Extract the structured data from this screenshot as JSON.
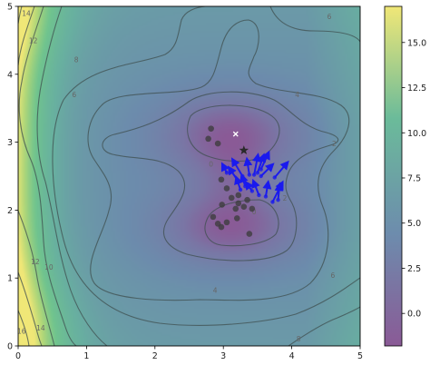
{
  "chart_data": {
    "type": "contour",
    "x_ticks": [
      "0",
      "1",
      "2",
      "3",
      "4",
      "5"
    ],
    "y_ticks": [
      "0",
      "1",
      "2",
      "3",
      "4",
      "5"
    ],
    "xlim": [
      0,
      5
    ],
    "ylim": [
      0,
      5
    ],
    "colorbar": {
      "range": [
        -1.8,
        17.0
      ],
      "ticks": [
        "0.0",
        "2.5",
        "5.0",
        "7.5",
        "10.0",
        "12.5",
        "15.0"
      ],
      "tick_values": [
        0,
        2.5,
        5,
        7.5,
        10,
        12.5,
        15
      ],
      "colormap": [
        "#440154",
        "#31688e",
        "#35b779",
        "#fde725"
      ]
    },
    "contour_labels": [
      {
        "text": "14",
        "x": 0.12,
        "y": 4.9
      },
      {
        "text": "12",
        "x": 0.22,
        "y": 4.5
      },
      {
        "text": "8",
        "x": 0.85,
        "y": 4.22
      },
      {
        "text": "6",
        "x": 0.82,
        "y": 3.7
      },
      {
        "text": "6",
        "x": 4.55,
        "y": 4.85
      },
      {
        "text": "4",
        "x": 4.08,
        "y": 3.7
      },
      {
        "text": "2",
        "x": 4.62,
        "y": 2.98
      },
      {
        "text": "0",
        "x": 2.82,
        "y": 2.68
      },
      {
        "text": "0",
        "x": 3.45,
        "y": 1.98
      },
      {
        "text": "2",
        "x": 3.9,
        "y": 2.18
      },
      {
        "text": "4",
        "x": 2.88,
        "y": 0.82
      },
      {
        "text": "6",
        "x": 4.6,
        "y": 1.04
      },
      {
        "text": "8",
        "x": 4.1,
        "y": 0.11
      },
      {
        "text": "12",
        "x": 0.25,
        "y": 1.24
      },
      {
        "text": "10",
        "x": 0.45,
        "y": 1.16
      },
      {
        "text": "14",
        "x": 0.33,
        "y": 0.27
      },
      {
        "text": "16",
        "x": 0.05,
        "y": 0.22
      }
    ],
    "gray_points": [
      [
        2.82,
        3.2
      ],
      [
        2.78,
        3.05
      ],
      [
        2.92,
        2.98
      ],
      [
        2.97,
        2.45
      ],
      [
        3.05,
        2.32
      ],
      [
        3.12,
        2.18
      ],
      [
        3.22,
        2.22
      ],
      [
        3.35,
        2.15
      ],
      [
        3.18,
        2.02
      ],
      [
        2.98,
        2.08
      ],
      [
        3.3,
        2.05
      ],
      [
        3.42,
        2.02
      ],
      [
        3.2,
        1.88
      ],
      [
        3.05,
        1.82
      ],
      [
        2.92,
        1.8
      ],
      [
        2.85,
        1.9
      ],
      [
        2.97,
        1.75
      ],
      [
        3.38,
        1.65
      ],
      [
        3.22,
        2.1
      ]
    ],
    "gray_star": [
      3.3,
      2.88
    ],
    "white_x": [
      3.18,
      3.12
    ],
    "blue_arrows": [
      {
        "from": [
          3.28,
          2.5
        ],
        "to": [
          3.15,
          2.72
        ]
      },
      {
        "from": [
          3.38,
          2.52
        ],
        "to": [
          3.35,
          2.72
        ]
      },
      {
        "from": [
          3.45,
          2.52
        ],
        "to": [
          3.5,
          2.78
        ]
      },
      {
        "from": [
          3.5,
          2.55
        ],
        "to": [
          3.58,
          2.78
        ]
      },
      {
        "from": [
          3.55,
          2.6
        ],
        "to": [
          3.65,
          2.82
        ]
      },
      {
        "from": [
          3.55,
          2.5
        ],
        "to": [
          3.7,
          2.65
        ]
      },
      {
        "from": [
          3.05,
          2.55
        ],
        "to": [
          3.0,
          2.65
        ]
      },
      {
        "from": [
          3.22,
          2.42
        ],
        "to": [
          3.1,
          2.6
        ]
      },
      {
        "from": [
          3.25,
          2.3
        ],
        "to": [
          3.2,
          2.45
        ]
      },
      {
        "from": [
          3.52,
          2.22
        ],
        "to": [
          3.45,
          2.4
        ]
      },
      {
        "from": [
          3.62,
          2.2
        ],
        "to": [
          3.65,
          2.38
        ]
      },
      {
        "from": [
          3.72,
          2.12
        ],
        "to": [
          3.85,
          2.38
        ]
      },
      {
        "from": [
          3.8,
          2.15
        ],
        "to": [
          3.82,
          2.35
        ]
      },
      {
        "from": [
          3.75,
          2.48
        ],
        "to": [
          3.92,
          2.68
        ]
      },
      {
        "from": [
          3.42,
          2.28
        ],
        "to": [
          3.35,
          2.38
        ]
      },
      {
        "from": [
          3.32,
          2.35
        ],
        "to": [
          3.28,
          2.48
        ]
      }
    ]
  }
}
